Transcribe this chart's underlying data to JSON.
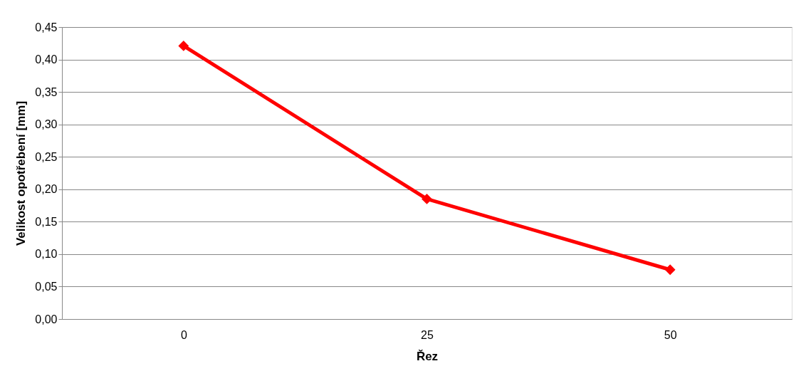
{
  "chart_data": {
    "type": "line",
    "xlabel": "Řez",
    "ylabel": "Velikost opotřebení [mm]",
    "categories": [
      "0",
      "25",
      "50"
    ],
    "series": [
      {
        "color": "#ff0000",
        "values": [
          0.421,
          0.185,
          0.076
        ]
      }
    ],
    "ylim": [
      0,
      0.45
    ],
    "yticks": [
      {
        "value": 0,
        "label": "0,00"
      },
      {
        "value": 0.05,
        "label": "0,05"
      },
      {
        "value": 0.1,
        "label": "0,10"
      },
      {
        "value": 0.15,
        "label": "0,15"
      },
      {
        "value": 0.2,
        "label": "0,20"
      },
      {
        "value": 0.25,
        "label": "0,25"
      },
      {
        "value": 0.3,
        "label": "0,30"
      },
      {
        "value": 0.35,
        "label": "0,35"
      },
      {
        "value": 0.4,
        "label": "0,40"
      },
      {
        "value": 0.45,
        "label": "0,45"
      }
    ],
    "grid": "y",
    "legend": false,
    "marker": "diamond",
    "line_style": "solid"
  }
}
